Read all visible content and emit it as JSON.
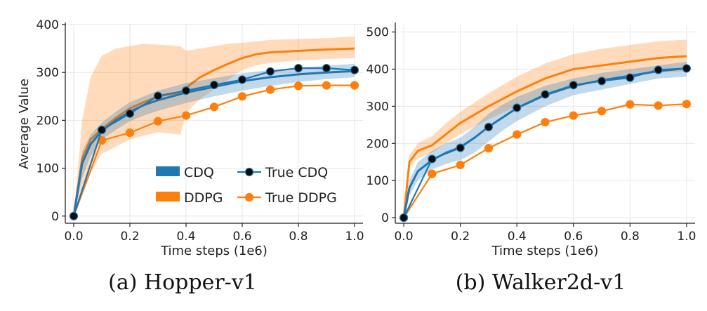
{
  "colors": {
    "cdq": "#1f77b4",
    "ddpg": "#ff7f0e",
    "grid": "#e6e6e6",
    "axis": "#222222",
    "marker_cdq": "#0b0b0b"
  },
  "legend": {
    "cdq": "CDQ",
    "ddpg": "DDPG",
    "true_cdq": "True CDQ",
    "true_ddpg": "True DDPG"
  },
  "chart_data": [
    {
      "type": "line",
      "caption": "(a) Hopper-v1",
      "xlabel": "Time steps (1e6)",
      "ylabel": "Average Value",
      "xlim": [
        -0.03,
        1.03
      ],
      "ylim": [
        -15,
        400
      ],
      "xticks": [
        0.0,
        0.2,
        0.4,
        0.6,
        0.8,
        1.0
      ],
      "xtick_labels": [
        "0.0",
        "0.2",
        "0.4",
        "0.6",
        "0.8",
        "1.0"
      ],
      "yticks": [
        0,
        100,
        200,
        300,
        400
      ],
      "ytick_labels": [
        "0",
        "100",
        "200",
        "300",
        "400"
      ],
      "grid": true,
      "legend_position": "lower-right",
      "series": [
        {
          "key": "ddpg",
          "kind": "shaded-line",
          "x": [
            0.0,
            0.03,
            0.06,
            0.1,
            0.15,
            0.2,
            0.25,
            0.3,
            0.35,
            0.38,
            0.4,
            0.45,
            0.5,
            0.55,
            0.6,
            0.65,
            0.7,
            0.8,
            0.9,
            1.0
          ],
          "y": [
            0,
            120,
            160,
            182,
            205,
            225,
            238,
            250,
            255,
            258,
            268,
            290,
            305,
            318,
            330,
            338,
            342,
            345,
            348,
            350
          ],
          "lower": [
            0,
            60,
            90,
            130,
            145,
            160,
            168,
            175,
            172,
            170,
            215,
            245,
            265,
            285,
            305,
            315,
            320,
            325,
            328,
            330
          ],
          "upper": [
            0,
            200,
            290,
            335,
            350,
            355,
            360,
            358,
            356,
            355,
            345,
            350,
            355,
            360,
            362,
            365,
            368,
            370,
            372,
            375
          ]
        },
        {
          "key": "cdq",
          "kind": "shaded-line",
          "x": [
            0.0,
            0.03,
            0.06,
            0.1,
            0.15,
            0.2,
            0.25,
            0.3,
            0.35,
            0.4,
            0.5,
            0.6,
            0.7,
            0.8,
            0.9,
            1.0
          ],
          "y": [
            0,
            110,
            150,
            178,
            200,
            218,
            232,
            242,
            250,
            258,
            270,
            282,
            290,
            296,
            300,
            303
          ],
          "lower": [
            0,
            80,
            125,
            160,
            180,
            198,
            210,
            220,
            228,
            236,
            250,
            262,
            272,
            280,
            286,
            290
          ],
          "upper": [
            0,
            135,
            170,
            195,
            218,
            238,
            250,
            262,
            270,
            278,
            288,
            298,
            305,
            310,
            314,
            318
          ]
        },
        {
          "key": "true_ddpg",
          "kind": "marker-line",
          "x": [
            0.0,
            0.1,
            0.2,
            0.3,
            0.4,
            0.5,
            0.6,
            0.7,
            0.8,
            0.9,
            1.0
          ],
          "y": [
            0,
            158,
            174,
            198,
            210,
            228,
            250,
            264,
            272,
            273,
            273
          ]
        },
        {
          "key": "true_cdq",
          "kind": "marker-line",
          "x": [
            0.0,
            0.1,
            0.2,
            0.3,
            0.4,
            0.5,
            0.6,
            0.7,
            0.8,
            0.9,
            1.0
          ],
          "y": [
            0,
            180,
            214,
            251,
            262,
            274,
            285,
            302,
            309,
            309,
            305
          ]
        }
      ]
    },
    {
      "type": "line",
      "caption": "(b) Walker2d-v1",
      "xlabel": "Time steps (1e6)",
      "ylabel": "",
      "xlim": [
        -0.03,
        1.03
      ],
      "ylim": [
        -15,
        520
      ],
      "xticks": [
        0.0,
        0.2,
        0.4,
        0.6,
        0.8,
        1.0
      ],
      "xtick_labels": [
        "0.0",
        "0.2",
        "0.4",
        "0.6",
        "0.8",
        "1.0"
      ],
      "yticks": [
        0,
        100,
        200,
        300,
        400,
        500
      ],
      "ytick_labels": [
        "0",
        "100",
        "200",
        "300",
        "400",
        "500"
      ],
      "grid": true,
      "legend_position": "none",
      "series": [
        {
          "key": "ddpg",
          "kind": "shaded-line",
          "x": [
            0.0,
            0.02,
            0.05,
            0.1,
            0.15,
            0.2,
            0.3,
            0.4,
            0.5,
            0.6,
            0.7,
            0.8,
            0.9,
            1.0
          ],
          "y": [
            0,
            150,
            180,
            195,
            225,
            255,
            300,
            340,
            375,
            400,
            410,
            420,
            430,
            435
          ],
          "lower": [
            0,
            135,
            160,
            175,
            200,
            225,
            265,
            300,
            330,
            355,
            370,
            380,
            390,
            395
          ],
          "upper": [
            0,
            170,
            200,
            220,
            255,
            285,
            335,
            380,
            415,
            440,
            455,
            465,
            475,
            480
          ]
        },
        {
          "key": "cdq",
          "kind": "shaded-line",
          "x": [
            0.0,
            0.02,
            0.05,
            0.1,
            0.15,
            0.2,
            0.25,
            0.3,
            0.35,
            0.4,
            0.5,
            0.6,
            0.7,
            0.8,
            0.9,
            1.0
          ],
          "y": [
            0,
            80,
            125,
            155,
            175,
            190,
            215,
            245,
            270,
            295,
            330,
            355,
            370,
            382,
            395,
            402
          ],
          "lower": [
            0,
            60,
            100,
            130,
            145,
            155,
            175,
            205,
            235,
            260,
            300,
            330,
            345,
            360,
            375,
            380
          ],
          "upper": [
            0,
            100,
            150,
            180,
            200,
            215,
            245,
            280,
            305,
            325,
            355,
            375,
            390,
            400,
            410,
            420
          ]
        },
        {
          "key": "true_ddpg",
          "kind": "marker-line",
          "x": [
            0.0,
            0.1,
            0.2,
            0.3,
            0.4,
            0.5,
            0.6,
            0.7,
            0.8,
            0.9,
            1.0
          ],
          "y": [
            0,
            118,
            142,
            187,
            224,
            257,
            275,
            287,
            305,
            302,
            306
          ]
        },
        {
          "key": "true_cdq",
          "kind": "marker-line",
          "x": [
            0.0,
            0.1,
            0.2,
            0.3,
            0.4,
            0.5,
            0.6,
            0.7,
            0.8,
            0.9,
            1.0
          ],
          "y": [
            0,
            158,
            188,
            244,
            296,
            332,
            357,
            368,
            377,
            398,
            402
          ]
        }
      ]
    }
  ]
}
